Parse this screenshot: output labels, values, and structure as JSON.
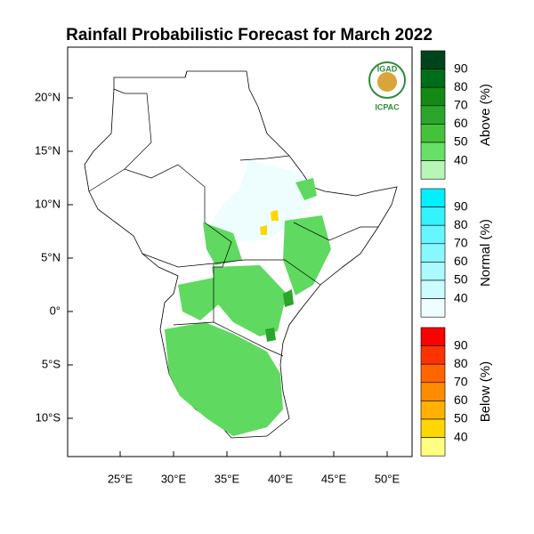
{
  "title": "Rainfall Probabilistic Forecast for March 2022",
  "map": {
    "lon_ticks": [
      "25°E",
      "30°E",
      "35°E",
      "40°E",
      "45°E",
      "50°E"
    ],
    "lat_ticks": [
      "20°N",
      "15°N",
      "10°N",
      "5°N",
      "0°",
      "5°S",
      "10°S"
    ]
  },
  "legend": [
    {
      "label": "Above (%)",
      "levels": [
        90,
        80,
        70,
        60,
        50,
        40
      ],
      "colors": [
        "#00441b",
        "#006d1a",
        "#138a13",
        "#2ca52c",
        "#45c23a",
        "#66e066",
        "#b8f5b8"
      ]
    },
    {
      "label": "Normal (%)",
      "levels": [
        90,
        80,
        70,
        60,
        50,
        40
      ],
      "colors": [
        "#00f0ff",
        "#33f3ff",
        "#66f6ff",
        "#88f8ff",
        "#aafaff",
        "#ccfcff",
        "#eefefe"
      ]
    },
    {
      "label": "Below (%)",
      "levels": [
        90,
        80,
        70,
        60,
        50,
        40
      ],
      "colors": [
        "#ff0000",
        "#ff3300",
        "#ff6600",
        "#ff8c00",
        "#ffb000",
        "#ffd700",
        "#ffff80"
      ]
    }
  ],
  "logo": {
    "top": "IGAD",
    "bottom": "ICPAC"
  }
}
